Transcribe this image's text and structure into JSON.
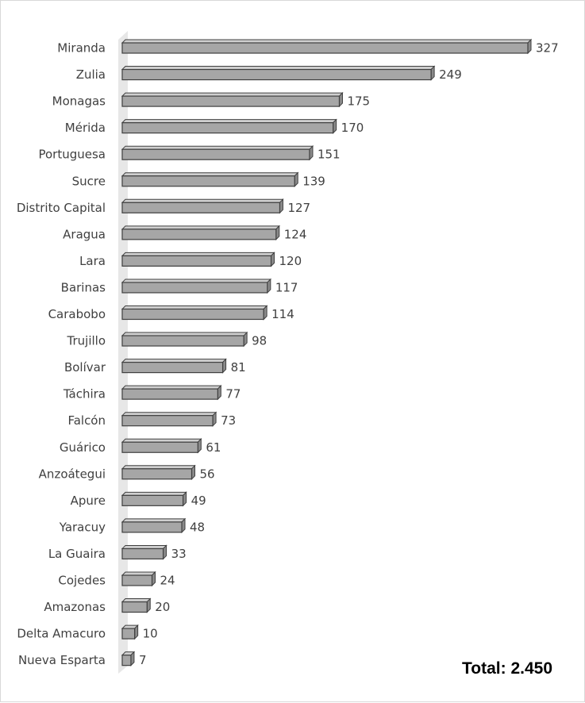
{
  "chart_data": {
    "type": "bar",
    "orientation": "horizontal",
    "style": "3d",
    "categories": [
      "Miranda",
      "Zulia",
      "Monagas",
      "Mérida",
      "Portuguesa",
      "Sucre",
      "Distrito Capital",
      "Aragua",
      "Lara",
      "Barinas",
      "Carabobo",
      "Trujillo",
      "Bolívar",
      "Táchira",
      "Falcón",
      "Guárico",
      "Anzoátegui",
      "Apure",
      "Yaracuy",
      "La Guaira",
      "Cojedes",
      "Amazonas",
      "Delta Amacuro",
      "Nueva Esparta"
    ],
    "values": [
      327,
      249,
      175,
      170,
      151,
      139,
      127,
      124,
      120,
      117,
      114,
      98,
      81,
      77,
      73,
      61,
      56,
      49,
      48,
      33,
      24,
      20,
      10,
      7
    ],
    "xlim": [
      0,
      327
    ],
    "grid": false,
    "data_labels": true,
    "bar_color": "#a6a6a6",
    "bar_edge_color": "#404040",
    "wall_color": "#e7e7e7"
  },
  "total_text": "Total: 2.450"
}
